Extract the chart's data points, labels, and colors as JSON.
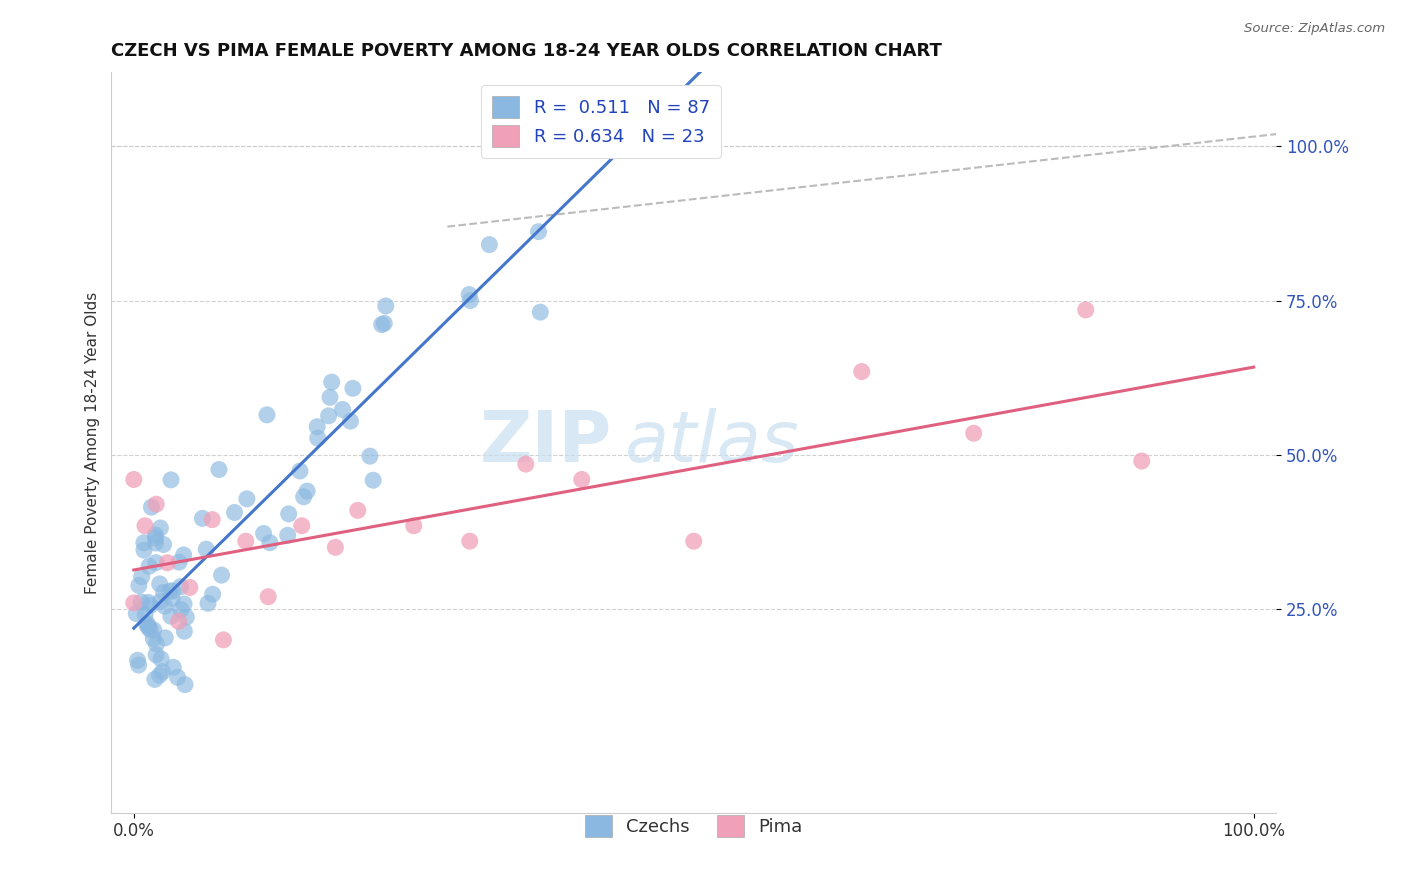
{
  "title": "CZECH VS PIMA FEMALE POVERTY AMONG 18-24 YEAR OLDS CORRELATION CHART",
  "source": "Source: ZipAtlas.com",
  "ylabel": "Female Poverty Among 18-24 Year Olds",
  "xlabel": "",
  "xlim": [
    -0.02,
    1.02
  ],
  "ylim": [
    -0.08,
    1.12
  ],
  "background_color": "#ffffff",
  "watermark_text": "ZIP",
  "watermark_text2": "atlas",
  "czech_color": "#8ab8e0",
  "pima_color": "#f0a0b8",
  "czech_line_color": "#4477cc",
  "pima_line_color": "#e06080",
  "dashed_line_color": "#bbbbbb",
  "legend_R_czech": "0.511",
  "legend_N_czech": "87",
  "legend_R_pima": "0.634",
  "legend_N_pima": "23",
  "ytick_labels_right": [
    "100.0%",
    "75.0%",
    "50.0%",
    "25.0%"
  ],
  "ytick_positions": [
    1.0,
    0.75,
    0.5,
    0.25
  ],
  "title_fontsize": 13,
  "label_fontsize": 11,
  "tick_fontsize": 12,
  "legend_fontsize": 13
}
